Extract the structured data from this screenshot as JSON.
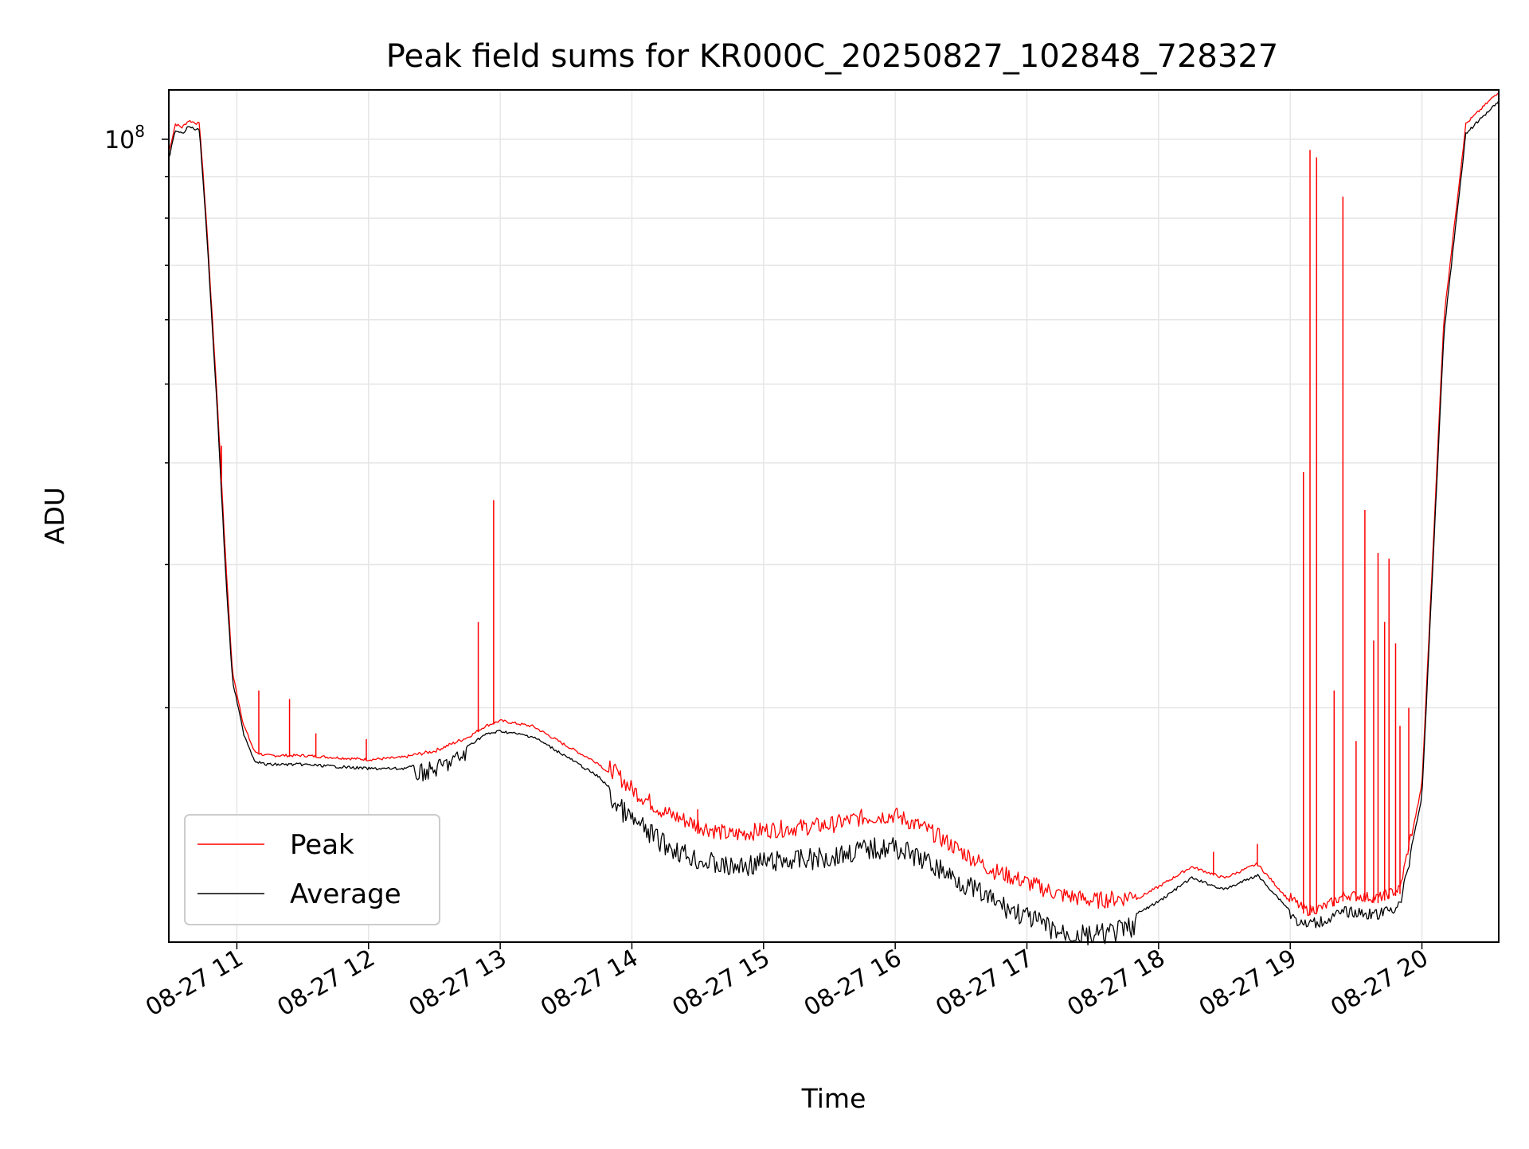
{
  "chart_data": {
    "type": "line",
    "title": "Peak field sums for KR000C_20250827_102848_728327",
    "xlabel": "Time",
    "ylabel": "ADU",
    "yscale": "log",
    "grid": true,
    "legend_position": "lower-left",
    "xlim": [
      "08-27 10:29",
      "08-27 20:35"
    ],
    "ylim": [
      10300000,
      115000000
    ],
    "x_ticks": [
      "08-27 11",
      "08-27 12",
      "08-27 13",
      "08-27 14",
      "08-27 15",
      "08-27 16",
      "08-27 17",
      "08-27 18",
      "08-27 19",
      "08-27 20"
    ],
    "y_ticks": [
      {
        "value": 100000000,
        "label": "10",
        "exponent": "8"
      }
    ],
    "series": [
      {
        "name": "Peak",
        "color": "#ff0000",
        "x": [
          "08-27 10:29",
          "08-27 10:32",
          "08-27 10:35",
          "08-27 10:38",
          "08-27 10:43",
          "08-27 10:46",
          "08-27 10:51",
          "08-27 10:55",
          "08-27 10:58",
          "08-27 11:03",
          "08-27 11:08",
          "08-27 11:13",
          "08-27 11:20",
          "08-27 11:30",
          "08-27 11:45",
          "08-27 12:00",
          "08-27 12:15",
          "08-27 12:30",
          "08-27 12:45",
          "08-27 12:53",
          "08-27 13:00",
          "08-27 13:15",
          "08-27 13:30",
          "08-27 13:45",
          "08-27 14:00",
          "08-27 14:15",
          "08-27 14:30",
          "08-27 14:45",
          "08-27 15:00",
          "08-27 15:30",
          "08-27 15:45",
          "08-27 16:00",
          "08-27 16:15",
          "08-27 16:30",
          "08-27 16:45",
          "08-27 17:00",
          "08-27 17:15",
          "08-27 17:30",
          "08-27 17:45",
          "08-27 18:00",
          "08-27 18:15",
          "08-27 18:30",
          "08-27 18:45",
          "08-27 19:00",
          "08-27 19:05",
          "08-27 19:08",
          "08-27 19:15",
          "08-27 19:25",
          "08-27 19:40",
          "08-27 19:50",
          "08-27 20:00",
          "08-27 20:10",
          "08-27 20:20",
          "08-27 20:35"
        ],
        "y": [
          96000000,
          104000000,
          103000000,
          105000000,
          104000000,
          80000000,
          48000000,
          30000000,
          22000000,
          19000000,
          17600000,
          17400000,
          17400000,
          17400000,
          17300000,
          17200000,
          17300000,
          17600000,
          18300000,
          18900000,
          19200000,
          18900000,
          17900000,
          17000000,
          15500000,
          14500000,
          14000000,
          13600000,
          13800000,
          14000000,
          14300000,
          14400000,
          13800000,
          13000000,
          12300000,
          11900000,
          11500000,
          11300000,
          11400000,
          12000000,
          12700000,
          12300000,
          12800000,
          11500000,
          11200000,
          11100000,
          11200000,
          11600000,
          11500000,
          11800000,
          16000000,
          60000000,
          104000000,
          114000000
        ]
      },
      {
        "name": "Average",
        "color": "#000000",
        "x": [
          "08-27 10:29",
          "08-27 10:32",
          "08-27 10:35",
          "08-27 10:38",
          "08-27 10:43",
          "08-27 10:46",
          "08-27 10:51",
          "08-27 10:55",
          "08-27 10:58",
          "08-27 11:03",
          "08-27 11:08",
          "08-27 11:13",
          "08-27 11:20",
          "08-27 11:30",
          "08-27 11:45",
          "08-27 12:00",
          "08-27 12:15",
          "08-27 12:30",
          "08-27 12:45",
          "08-27 12:53",
          "08-27 13:00",
          "08-27 13:15",
          "08-27 13:30",
          "08-27 13:45",
          "08-27 14:00",
          "08-27 14:15",
          "08-27 14:30",
          "08-27 14:45",
          "08-27 15:00",
          "08-27 15:30",
          "08-27 15:45",
          "08-27 16:00",
          "08-27 16:15",
          "08-27 16:30",
          "08-27 16:45",
          "08-27 17:00",
          "08-27 17:15",
          "08-27 17:30",
          "08-27 17:45",
          "08-27 18:00",
          "08-27 18:15",
          "08-27 18:30",
          "08-27 18:45",
          "08-27 19:00",
          "08-27 19:05",
          "08-27 19:08",
          "08-27 19:15",
          "08-27 19:25",
          "08-27 19:40",
          "08-27 19:50",
          "08-27 20:00",
          "08-27 20:10",
          "08-27 20:20",
          "08-27 20:35"
        ],
        "y": [
          95000000,
          103000000,
          102000000,
          104000000,
          103000000,
          79000000,
          47000000,
          29000000,
          21700000,
          18700000,
          17300000,
          17100000,
          17100000,
          17100000,
          17000000,
          16900000,
          16900000,
          17200000,
          18000000,
          18600000,
          18800000,
          18500000,
          17500000,
          16500000,
          15000000,
          14000000,
          13400000,
          13100000,
          13300000,
          13500000,
          13800000,
          13900000,
          13300000,
          12600000,
          11900000,
          11400000,
          10900000,
          10800000,
          11000000,
          11600000,
          12400000,
          12000000,
          12500000,
          11300000,
          11000000,
          11000000,
          11100000,
          11400000,
          11300000,
          11600000,
          15600000,
          58000000,
          102000000,
          112000000
        ]
      }
    ],
    "spikes": {
      "Peak": [
        [
          "08-27 10:53",
          42000000
        ],
        [
          "08-27 11:10",
          21000000
        ],
        [
          "08-27 11:24",
          20500000
        ],
        [
          "08-27 11:36",
          18600000
        ],
        [
          "08-27 11:59",
          18300000
        ],
        [
          "08-27 12:50",
          25500000
        ],
        [
          "08-27 12:57",
          36000000
        ],
        [
          "08-27 14:30",
          15000000
        ],
        [
          "08-27 18:25",
          13300000
        ],
        [
          "08-27 18:45",
          13600000
        ],
        [
          "08-27 19:06",
          39000000
        ],
        [
          "08-27 19:09",
          97000000
        ],
        [
          "08-27 19:12",
          95000000
        ],
        [
          "08-27 19:20",
          21000000
        ],
        [
          "08-27 19:24",
          85000000
        ],
        [
          "08-27 19:30",
          18200000
        ],
        [
          "08-27 19:34",
          35000000
        ],
        [
          "08-27 19:38",
          24200000
        ],
        [
          "08-27 19:40",
          31000000
        ],
        [
          "08-27 19:43",
          25500000
        ],
        [
          "08-27 19:45",
          30500000
        ],
        [
          "08-27 19:48",
          24000000
        ],
        [
          "08-27 19:50",
          19000000
        ],
        [
          "08-27 19:54",
          20000000
        ]
      ]
    }
  }
}
